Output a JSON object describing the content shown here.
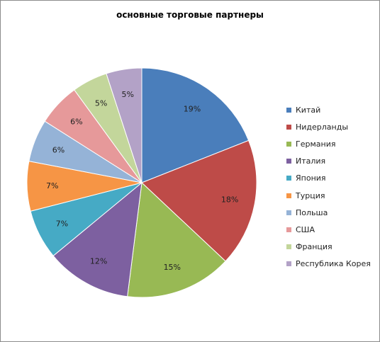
{
  "chart_data": {
    "type": "pie",
    "title": "основные торговые партнеры",
    "categories": [
      "Китай",
      "Нидерланды",
      "Германия",
      "Италия",
      "Япония",
      "Турция",
      "Польша",
      "США",
      "Франция",
      "Республика Корея"
    ],
    "values": [
      19,
      18,
      15,
      12,
      7,
      7,
      6,
      6,
      5,
      5
    ],
    "data_labels": [
      "19%",
      "18%",
      "15%",
      "12%",
      "7%",
      "7%",
      "6%",
      "6%",
      "5%",
      "5%"
    ],
    "colors": [
      "#4a7ebb",
      "#be4b48",
      "#98b954",
      "#7d60a0",
      "#46aac5",
      "#f69545",
      "#95b3d7",
      "#e6999a",
      "#c3d69b",
      "#b3a2c7"
    ],
    "legend_position": "right"
  }
}
